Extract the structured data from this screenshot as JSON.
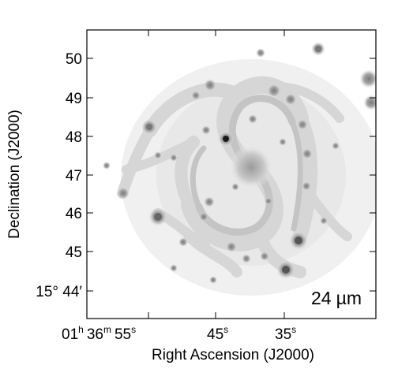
{
  "figure": {
    "image_description_label": "24 µm",
    "band_prefix": "24",
    "band_unit": "µm",
    "xlabel": "Right Ascension (J2000)",
    "ylabel": "Declination (J2000)",
    "dec_ticks": [
      {
        "value": "50",
        "dec": 50
      },
      {
        "value": "49",
        "dec": 49
      },
      {
        "value": "48",
        "dec": 48
      },
      {
        "value": "47",
        "dec": 47
      },
      {
        "value": "46",
        "dec": 46
      },
      {
        "value": "45",
        "dec": 45
      },
      {
        "value": "15° 44′",
        "dec": 44
      }
    ],
    "ra_ticks": {
      "first": {
        "h": "01",
        "h_unit": "h",
        "m": "36",
        "m_unit": "m",
        "s": "55",
        "s_unit": "s"
      },
      "second": {
        "s": "45",
        "s_unit": "s"
      },
      "third": {
        "s": "35",
        "s_unit": "s"
      }
    },
    "colors": {
      "background": "#ffffff",
      "emission_light": "#dcdcdc",
      "emission_mid": "#b4b4b4",
      "emission_dark": "#6e6e6e",
      "frame": "#000000"
    }
  }
}
